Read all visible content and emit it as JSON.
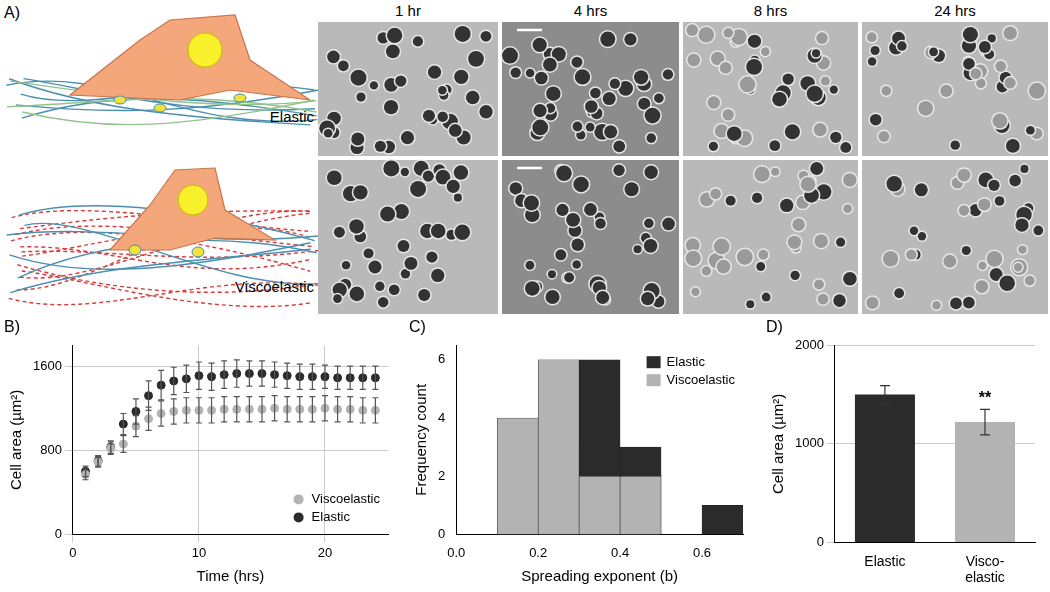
{
  "panel_a": {
    "title": "A)",
    "columns": [
      "1 hr",
      "4 hrs",
      "8 hrs",
      "24 hrs"
    ],
    "rows": [
      "Elastic",
      "Viscoelastic"
    ]
  },
  "chart_data": [
    {
      "type": "scatter",
      "title": "B)",
      "x_label": "Time (hrs)",
      "y_label": "Cell area (µm²)",
      "x": [
        1,
        2,
        3,
        4,
        5,
        6,
        7,
        8,
        9,
        10,
        11,
        12,
        13,
        14,
        15,
        16,
        17,
        18,
        19,
        20,
        21,
        22,
        23,
        24
      ],
      "series": [
        {
          "name": "Viscoelastic",
          "color": "#b3b3b3",
          "marker": "circle",
          "values": [
            570,
            690,
            820,
            860,
            1030,
            1100,
            1150,
            1170,
            1180,
            1180,
            1180,
            1190,
            1190,
            1190,
            1190,
            1200,
            1190,
            1190,
            1190,
            1200,
            1190,
            1190,
            1180,
            1180
          ],
          "errors": [
            50,
            50,
            60,
            80,
            100,
            110,
            120,
            120,
            120,
            120,
            120,
            120,
            120,
            120,
            120,
            120,
            120,
            120,
            120,
            120,
            120,
            120,
            120,
            120
          ]
        },
        {
          "name": "Elastic",
          "color": "#2b2b2b",
          "marker": "circle",
          "values": [
            600,
            700,
            830,
            1050,
            1170,
            1320,
            1420,
            1460,
            1480,
            1510,
            1500,
            1520,
            1530,
            1530,
            1530,
            1520,
            1510,
            1500,
            1500,
            1500,
            1490,
            1490,
            1490,
            1490
          ],
          "errors": [
            50,
            50,
            60,
            100,
            120,
            140,
            140,
            130,
            130,
            130,
            130,
            130,
            130,
            120,
            120,
            120,
            120,
            120,
            120,
            110,
            110,
            110,
            110,
            110
          ]
        }
      ],
      "xlim": [
        0,
        25
      ],
      "xticks": [
        0,
        10,
        20
      ],
      "ylim": [
        0,
        1800
      ],
      "yticks": [
        0,
        800,
        1600
      ],
      "grid": true,
      "legend": "lower right"
    },
    {
      "type": "histogram",
      "title": "C)",
      "x_label": "Spreading exponent (b)",
      "y_label": "Frequency count",
      "bins": [
        0.1,
        0.2,
        0.3,
        0.4,
        0.5,
        0.6,
        0.7
      ],
      "series": [
        {
          "name": "Elastic",
          "color": "#2b2b2b",
          "values": [
            0,
            3,
            6,
            3,
            0,
            1
          ]
        },
        {
          "name": "Viscoelastic",
          "color": "#b3b3b3",
          "values": [
            4,
            6,
            2,
            2,
            0,
            0
          ]
        }
      ],
      "xlim": [
        0,
        0.7
      ],
      "xticks": [
        {
          "value": 0,
          "label": "0.0"
        },
        0.2,
        0.4,
        0.6
      ],
      "ylim": [
        0,
        6.5
      ],
      "yticks": [
        0,
        2,
        4,
        6
      ],
      "grid": false,
      "legend": "upper right"
    },
    {
      "type": "bar",
      "title": "D)",
      "y_label": "Cell area (µm²)",
      "categories": [
        "Elastic",
        "Visco-\nelastic"
      ],
      "values": [
        1500,
        1220
      ],
      "errors": [
        90,
        130
      ],
      "colors": [
        "#2b2b2b",
        "#b3b3b3"
      ],
      "annotations": [
        {
          "text": "**",
          "category": "Visco-\nelastic"
        }
      ],
      "ylim": [
        0,
        2000
      ],
      "yticks": [
        0,
        1000,
        2000
      ],
      "grid": true
    }
  ]
}
